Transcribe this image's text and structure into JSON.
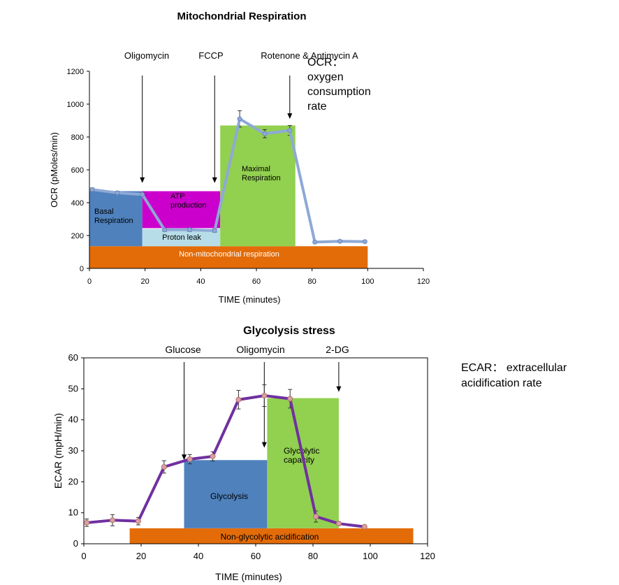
{
  "chart_data": [
    {
      "type": "line",
      "title": "Mitochondrial Respiration",
      "xlabel": "TIME (minutes)",
      "ylabel": "OCR (pMoles/min)",
      "xlim": [
        0,
        120
      ],
      "ylim": [
        0,
        1200
      ],
      "xticks": [
        0,
        20,
        40,
        60,
        80,
        100,
        120
      ],
      "yticks": [
        0,
        200,
        400,
        600,
        800,
        1000,
        1200
      ],
      "series": [
        {
          "name": "OCR",
          "color": "#8ea9d6",
          "x": [
            1,
            10,
            19,
            27,
            36,
            45,
            54,
            63,
            72,
            81,
            90,
            99
          ],
          "y": [
            480,
            460,
            450,
            235,
            235,
            230,
            910,
            820,
            840,
            160,
            165,
            163
          ],
          "err": [
            10,
            10,
            10,
            10,
            10,
            10,
            50,
            25,
            30,
            5,
            5,
            5
          ]
        }
      ],
      "regions": [
        {
          "label": "Non-mitochondrial respiration",
          "color": "#e36c09",
          "x0": 0,
          "x1": 100,
          "y0": 0,
          "y1": 135,
          "text_color": "#ffffff"
        },
        {
          "label": "Basal Respiration",
          "color": "#4f81bd",
          "x0": 0,
          "x1": 19,
          "y0": 135,
          "y1": 470,
          "text_color": "#000000"
        },
        {
          "label": "Proton leak",
          "color": "#b7dde8",
          "x0": 19,
          "x1": 47,
          "y0": 135,
          "y1": 240,
          "text_color": "#000000"
        },
        {
          "label": "ATP production",
          "color": "#cc00cc",
          "x0": 19,
          "x1": 47,
          "y0": 245,
          "y1": 470,
          "text_color": "#000000"
        },
        {
          "label": "Maximal Respiration",
          "color": "#92d050",
          "x0": 47,
          "x1": 74,
          "y0": 135,
          "y1": 870,
          "text_color": "#000000"
        }
      ],
      "injections": [
        {
          "label": "Oligomycin",
          "x": 19,
          "y_end": 520
        },
        {
          "label": "FCCP",
          "x": 45,
          "y_end": 520
        },
        {
          "label": "Rotenone & Antimycin A",
          "x": 72,
          "y_end": 910
        }
      ],
      "annotation": "OCR： oxygen consumption rate"
    },
    {
      "type": "line",
      "title": "Glycolysis stress",
      "xlabel": "TIME (minutes)",
      "ylabel": "ECAR (mpH/min)",
      "xlim": [
        0,
        120
      ],
      "ylim": [
        0,
        60
      ],
      "xticks": [
        0,
        20,
        40,
        60,
        80,
        100,
        120
      ],
      "yticks": [
        0,
        10,
        20,
        30,
        40,
        50,
        60
      ],
      "series": [
        {
          "name": "ECAR",
          "color": "#7030a0",
          "x": [
            1,
            10,
            19,
            28,
            37,
            45,
            54,
            63,
            72,
            81,
            89,
            98
          ],
          "y": [
            6.8,
            7.6,
            7.3,
            24.8,
            27.3,
            28.2,
            46.5,
            47.8,
            46.8,
            8.8,
            6.5,
            5.5
          ],
          "err": [
            1.2,
            1.8,
            1.2,
            2.0,
            1.5,
            1.5,
            3.0,
            3.5,
            3.0,
            1.8,
            0.6,
            0.4
          ]
        }
      ],
      "regions": [
        {
          "label": "Non-glycolytic acidification",
          "color": "#e36c09",
          "x0": 16,
          "x1": 115,
          "y0": 0,
          "y1": 5,
          "text_color": "#000000"
        },
        {
          "label": "Glycolysis",
          "color": "#4f81bd",
          "x0": 35,
          "x1": 64,
          "y0": 5,
          "y1": 27,
          "text_color": "#000000"
        },
        {
          "label": "Glycolytic capacity",
          "color": "#92d050",
          "x0": 64,
          "x1": 89,
          "y0": 5,
          "y1": 47,
          "text_color": "#000000"
        }
      ],
      "injections": [
        {
          "label": "Glucose",
          "x": 35,
          "y_end": 27
        },
        {
          "label": "Oligomycin",
          "x": 63,
          "y_end": 31
        },
        {
          "label": "2-DG",
          "x": 89,
          "y_end": 49
        }
      ],
      "annotation": "ECAR： extracellular acidification rate"
    }
  ]
}
